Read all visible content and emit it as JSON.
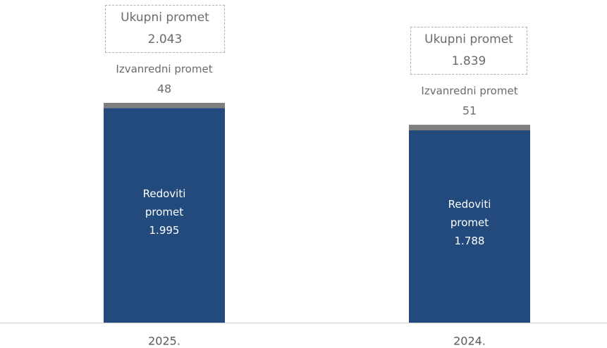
{
  "chart_data": {
    "type": "stacked_bar",
    "categories": [
      "2025.",
      "2024."
    ],
    "series": [
      {
        "name": "Redoviti promet",
        "color": "#234a7c",
        "values": [
          1995,
          1788
        ],
        "value_labels": [
          "1.995",
          "1.788"
        ]
      },
      {
        "name": "Izvanredni promet",
        "color": "#7f7f7f",
        "values": [
          48,
          51
        ]
      }
    ],
    "totals": {
      "name": "Ukupni promet",
      "values": [
        2043,
        1839
      ],
      "value_labels": [
        "2.043",
        "1.839"
      ]
    }
  }
}
